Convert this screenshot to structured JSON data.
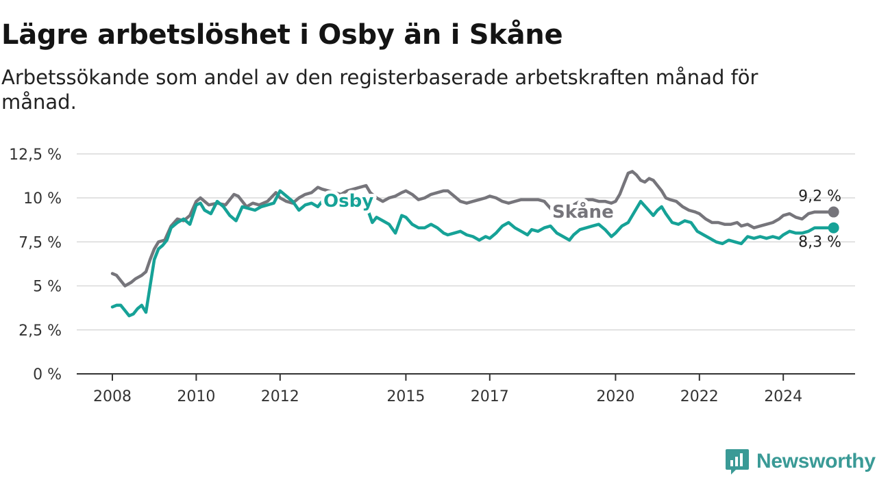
{
  "title": "Lägre arbetslöshet i Osby än i Skåne",
  "subtitle": "Arbetssökande som andel av den registerbaserade arbetskraften månad för månad.",
  "brand": {
    "name": "Newsworthy",
    "icon": "newsworthy-logo-icon"
  },
  "colors": {
    "osby": "#16a297",
    "skane": "#76757b",
    "grid": "#d9d9d9",
    "axis": "#333333"
  },
  "chart_data": {
    "type": "line",
    "title": "Lägre arbetslöshet i Osby än i Skåne",
    "xlabel": "",
    "ylabel": "",
    "ylim": [
      0,
      12.5
    ],
    "xlim": [
      2008,
      2025.4
    ],
    "grid": true,
    "legend": "inline labels",
    "y_ticks": [
      "0 %",
      "2,5 %",
      "5 %",
      "7,5 %",
      "10 %",
      "12,5 %"
    ],
    "y_tick_values": [
      0,
      2.5,
      5,
      7.5,
      10,
      12.5
    ],
    "x_ticks": [
      "2008",
      "2010",
      "2012",
      "2015",
      "2017",
      "2020",
      "2022",
      "2024"
    ],
    "x_tick_values": [
      2008,
      2010,
      2012,
      2015,
      2017,
      2020,
      2022,
      2024
    ],
    "series": [
      {
        "name": "Skåne",
        "end_label": "9,2 %",
        "x": [
          2008.0,
          2008.1,
          2008.2,
          2008.3,
          2008.45,
          2008.55,
          2008.7,
          2008.8,
          2008.9,
          2009.0,
          2009.1,
          2009.25,
          2009.4,
          2009.55,
          2009.7,
          2009.85,
          2010.0,
          2010.1,
          2010.2,
          2010.3,
          2010.5,
          2010.7,
          2010.9,
          2011.0,
          2011.1,
          2011.2,
          2011.35,
          2011.5,
          2011.7,
          2011.9,
          2012.0,
          2012.15,
          2012.3,
          2012.45,
          2012.6,
          2012.75,
          2012.9,
          2013.0,
          2013.15,
          2013.3,
          2013.45,
          2013.6,
          2013.75,
          2013.9,
          2014.05,
          2014.15,
          2014.3,
          2014.45,
          2014.6,
          2014.75,
          2014.9,
          2015.0,
          2015.15,
          2015.3,
          2015.45,
          2015.6,
          2015.75,
          2015.9,
          2016.0,
          2016.15,
          2016.3,
          2016.45,
          2016.6,
          2016.75,
          2016.9,
          2017.0,
          2017.15,
          2017.3,
          2017.45,
          2017.6,
          2017.75,
          2017.9,
          2018.0,
          2018.15,
          2018.3,
          2018.45,
          2018.6,
          2018.75,
          2018.9,
          2019.0,
          2019.15,
          2019.3,
          2019.45,
          2019.6,
          2019.75,
          2019.9,
          2020.0,
          2020.1,
          2020.2,
          2020.3,
          2020.4,
          2020.5,
          2020.6,
          2020.7,
          2020.8,
          2020.9,
          2021.0,
          2021.1,
          2021.2,
          2021.3,
          2021.45,
          2021.6,
          2021.75,
          2021.9,
          2022.0,
          2022.15,
          2022.3,
          2022.45,
          2022.6,
          2022.75,
          2022.9,
          2023.0,
          2023.15,
          2023.3,
          2023.45,
          2023.6,
          2023.75,
          2023.9,
          2024.0,
          2024.15,
          2024.3,
          2024.45,
          2024.6,
          2024.75,
          2024.9,
          2025.0,
          2025.1,
          2025.2
        ],
        "values": [
          5.7,
          5.6,
          5.3,
          5.0,
          5.2,
          5.4,
          5.6,
          5.8,
          6.5,
          7.1,
          7.5,
          7.6,
          8.4,
          8.8,
          8.7,
          9.0,
          9.8,
          10.0,
          9.8,
          9.6,
          9.7,
          9.6,
          10.2,
          10.1,
          9.8,
          9.5,
          9.7,
          9.6,
          9.8,
          10.3,
          10.0,
          9.8,
          9.7,
          10.0,
          10.2,
          10.3,
          10.6,
          10.5,
          10.4,
          10.3,
          10.2,
          10.4,
          10.5,
          10.6,
          10.7,
          10.3,
          10.0,
          9.8,
          10.0,
          10.1,
          10.3,
          10.4,
          10.2,
          9.9,
          10.0,
          10.2,
          10.3,
          10.4,
          10.4,
          10.1,
          9.8,
          9.7,
          9.8,
          9.9,
          10.0,
          10.1,
          10.0,
          9.8,
          9.7,
          9.8,
          9.9,
          9.9,
          9.9,
          9.9,
          9.8,
          9.4,
          9.1,
          9.5,
          9.6,
          9.6,
          9.8,
          9.9,
          9.9,
          9.8,
          9.8,
          9.7,
          9.8,
          10.2,
          10.8,
          11.4,
          11.5,
          11.3,
          11.0,
          10.9,
          11.1,
          11.0,
          10.7,
          10.4,
          10.0,
          9.9,
          9.8,
          9.5,
          9.3,
          9.2,
          9.1,
          8.8,
          8.6,
          8.6,
          8.5,
          8.5,
          8.6,
          8.4,
          8.5,
          8.3,
          8.4,
          8.5,
          8.6,
          8.8,
          9.0,
          9.1,
          8.9,
          8.8,
          9.1,
          9.2,
          9.2,
          9.2,
          9.2,
          9.2
        ]
      },
      {
        "name": "Osby",
        "end_label": "8,3 %",
        "x": [
          2008.0,
          2008.1,
          2008.2,
          2008.3,
          2008.4,
          2008.5,
          2008.6,
          2008.7,
          2008.8,
          2008.9,
          2009.0,
          2009.1,
          2009.2,
          2009.3,
          2009.4,
          2009.55,
          2009.7,
          2009.85,
          2010.0,
          2010.1,
          2010.2,
          2010.35,
          2010.5,
          2010.65,
          2010.8,
          2010.95,
          2011.1,
          2011.25,
          2011.4,
          2011.55,
          2011.7,
          2011.85,
          2012.0,
          2012.15,
          2012.3,
          2012.45,
          2012.6,
          2012.75,
          2012.9,
          2013.0,
          2013.15,
          2013.3,
          2013.45,
          2013.6,
          2013.75,
          2013.9,
          2014.05,
          2014.2,
          2014.3,
          2014.45,
          2014.6,
          2014.75,
          2014.9,
          2015.0,
          2015.15,
          2015.3,
          2015.45,
          2015.6,
          2015.75,
          2015.9,
          2016.0,
          2016.15,
          2016.3,
          2016.45,
          2016.6,
          2016.75,
          2016.9,
          2017.0,
          2017.15,
          2017.3,
          2017.45,
          2017.6,
          2017.75,
          2017.9,
          2018.0,
          2018.15,
          2018.3,
          2018.45,
          2018.6,
          2018.75,
          2018.9,
          2019.0,
          2019.15,
          2019.3,
          2019.45,
          2019.6,
          2019.75,
          2019.9,
          2020.0,
          2020.15,
          2020.3,
          2020.45,
          2020.6,
          2020.75,
          2020.9,
          2021.0,
          2021.1,
          2021.2,
          2021.35,
          2021.5,
          2021.65,
          2021.8,
          2021.95,
          2022.1,
          2022.25,
          2022.4,
          2022.55,
          2022.7,
          2022.85,
          2023.0,
          2023.15,
          2023.3,
          2023.45,
          2023.6,
          2023.75,
          2023.9,
          2024.0,
          2024.15,
          2024.3,
          2024.45,
          2024.6,
          2024.75,
          2024.9,
          2025.0,
          2025.1,
          2025.2
        ],
        "values": [
          3.8,
          3.9,
          3.9,
          3.6,
          3.3,
          3.4,
          3.7,
          3.9,
          3.5,
          5.0,
          6.5,
          7.1,
          7.3,
          7.6,
          8.3,
          8.6,
          8.8,
          8.5,
          9.6,
          9.7,
          9.3,
          9.1,
          9.8,
          9.5,
          9.0,
          8.7,
          9.5,
          9.4,
          9.3,
          9.5,
          9.6,
          9.7,
          10.4,
          10.1,
          9.8,
          9.3,
          9.6,
          9.7,
          9.5,
          9.8,
          9.9,
          9.6,
          9.4,
          9.7,
          9.9,
          9.8,
          9.6,
          8.6,
          8.9,
          8.7,
          8.5,
          8.0,
          9.0,
          8.9,
          8.5,
          8.3,
          8.3,
          8.5,
          8.3,
          8.0,
          7.9,
          8.0,
          8.1,
          7.9,
          7.8,
          7.6,
          7.8,
          7.7,
          8.0,
          8.4,
          8.6,
          8.3,
          8.1,
          7.9,
          8.2,
          8.1,
          8.3,
          8.4,
          8.0,
          7.8,
          7.6,
          7.9,
          8.2,
          8.3,
          8.4,
          8.5,
          8.2,
          7.8,
          8.0,
          8.4,
          8.6,
          9.2,
          9.8,
          9.4,
          9.0,
          9.3,
          9.5,
          9.1,
          8.6,
          8.5,
          8.7,
          8.6,
          8.1,
          7.9,
          7.7,
          7.5,
          7.4,
          7.6,
          7.5,
          7.4,
          7.8,
          7.7,
          7.8,
          7.7,
          7.8,
          7.7,
          7.9,
          8.1,
          8.0,
          8.0,
          8.1,
          8.3,
          8.3,
          8.3,
          8.3,
          8.3
        ]
      }
    ]
  }
}
